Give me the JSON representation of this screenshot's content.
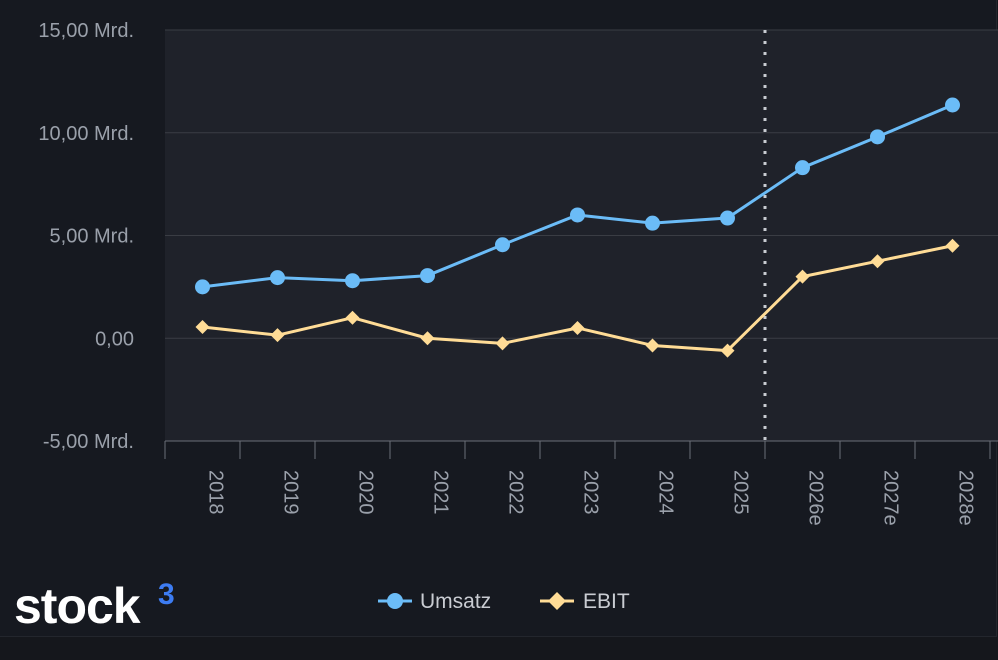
{
  "chart_data": {
    "type": "line",
    "categories": [
      "2018",
      "2019",
      "2020",
      "2021",
      "2022",
      "2023",
      "2024",
      "2025",
      "2026e",
      "2027e",
      "2028e"
    ],
    "series": [
      {
        "name": "Umsatz",
        "color": "#6bbcf7",
        "marker": "circle",
        "values": [
          2.5,
          2.95,
          2.8,
          3.05,
          4.55,
          6.0,
          5.6,
          5.85,
          8.3,
          9.8,
          11.35
        ]
      },
      {
        "name": "EBIT",
        "color": "#ffdc96",
        "marker": "diamond",
        "values": [
          0.55,
          0.15,
          1.0,
          0.0,
          -0.25,
          0.5,
          -0.35,
          -0.6,
          3.0,
          3.75,
          4.5
        ]
      }
    ],
    "ylim": [
      -5,
      15
    ],
    "yticks": [
      15,
      10,
      5,
      0,
      -5
    ],
    "ytick_labels": [
      "15,00 Mrd.",
      "10,00 Mrd.",
      "5,00 Mrd.",
      "0,00",
      "-5,00 Mrd."
    ],
    "forecast_divider_after": "2025",
    "grid": true,
    "legend": "bottom-center"
  },
  "brand": {
    "name": "stock",
    "superscript": "3",
    "accent": "#3d7cf2"
  },
  "colors": {
    "plot_background": "#1f222a",
    "grid": "#3a3d44"
  }
}
